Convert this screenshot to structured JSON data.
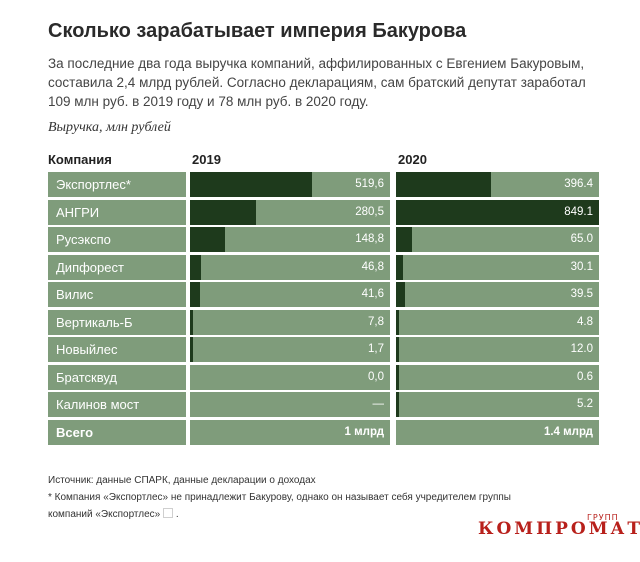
{
  "title": "Сколько зарабатывает империя Бакурова",
  "subtitle": "За последние два года выручка компаний, аффилированных с Евгением Бакуровым, составила 2,4 млрд рублей. Согласно декларациям, сам братский депутат заработал 109 млн руб. в 2019 году и 78 млн руб. в 2020 году.",
  "units": "Выручка, млн рублей",
  "columns": {
    "company": "Компания",
    "y2019": "2019",
    "y2020": "2020"
  },
  "chart_data": {
    "type": "bar",
    "categories": [
      "Экспортлес*",
      "АНГРИ",
      "Русэкспо",
      "Дипфорест",
      "Вилис",
      "Вертикаль-Б",
      "Новыйлес",
      "Братсквуд",
      "Калинов мост"
    ],
    "series": [
      {
        "name": "2019",
        "values": [
          519.6,
          280.5,
          148.8,
          46.8,
          41.6,
          7.8,
          1.7,
          0.0,
          null
        ],
        "labels": [
          "519,6",
          "280,5",
          "148,8",
          "46,8",
          "41,6",
          "7,8",
          "1,7",
          "0,0",
          "—"
        ]
      },
      {
        "name": "2020",
        "values": [
          396.4,
          849.1,
          65.0,
          30.1,
          39.5,
          4.8,
          12.0,
          0.6,
          5.2
        ],
        "labels": [
          "396.4",
          "849.1",
          "65.0",
          "30.1",
          "39.5",
          "4.8",
          "12.0",
          "0.6",
          "5.2"
        ]
      }
    ],
    "max": {
      "y2019": 849.1,
      "y2020": 849.1
    },
    "total": {
      "label": "Всего",
      "y2019": "1 млрд",
      "y2020": "1.4 млрд"
    }
  },
  "colors": {
    "cell": "#7f9c7b",
    "bar": "#1e3a1c",
    "logo": "#b8201b"
  },
  "source_line": "Источник: данные СПАРК, данные декларации о доходах",
  "footnote_line1": "* Компания «Экспортлес» не принадлежит Бакурову, однако он называет себя учредителем группы",
  "footnote_line2": "компаний «Экспортлес»",
  "footnote_end": ".",
  "logo_main": "КОМПРОМАТ",
  "logo_sup": "ГРУПП"
}
